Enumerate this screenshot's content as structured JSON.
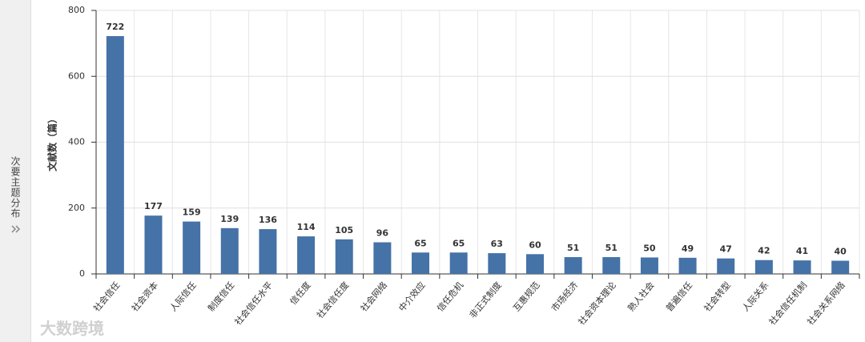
{
  "sidebar": {
    "title": "次要主题分布"
  },
  "watermark": "大数跨境",
  "chart_data": {
    "type": "bar",
    "y_label": "文献数（篇）",
    "categories": [
      "社会信任",
      "社会资本",
      "人际信任",
      "制度信任",
      "社会信任水平",
      "信任度",
      "社会信任度",
      "社会网络",
      "中介效应",
      "信任危机",
      "非正式制度",
      "互惠规范",
      "市场经济",
      "社会资本理论",
      "熟人社会",
      "普遍信任",
      "社会转型",
      "人际关系",
      "社会信任机制",
      "社会关系网络"
    ],
    "values": [
      722,
      177,
      159,
      139,
      136,
      114,
      105,
      96,
      65,
      65,
      63,
      60,
      51,
      51,
      50,
      49,
      47,
      42,
      41,
      40
    ],
    "color": "#4572a7",
    "ylim": [
      0,
      800
    ],
    "yticks": [
      0,
      200,
      400,
      600,
      800
    ],
    "grid": true
  }
}
